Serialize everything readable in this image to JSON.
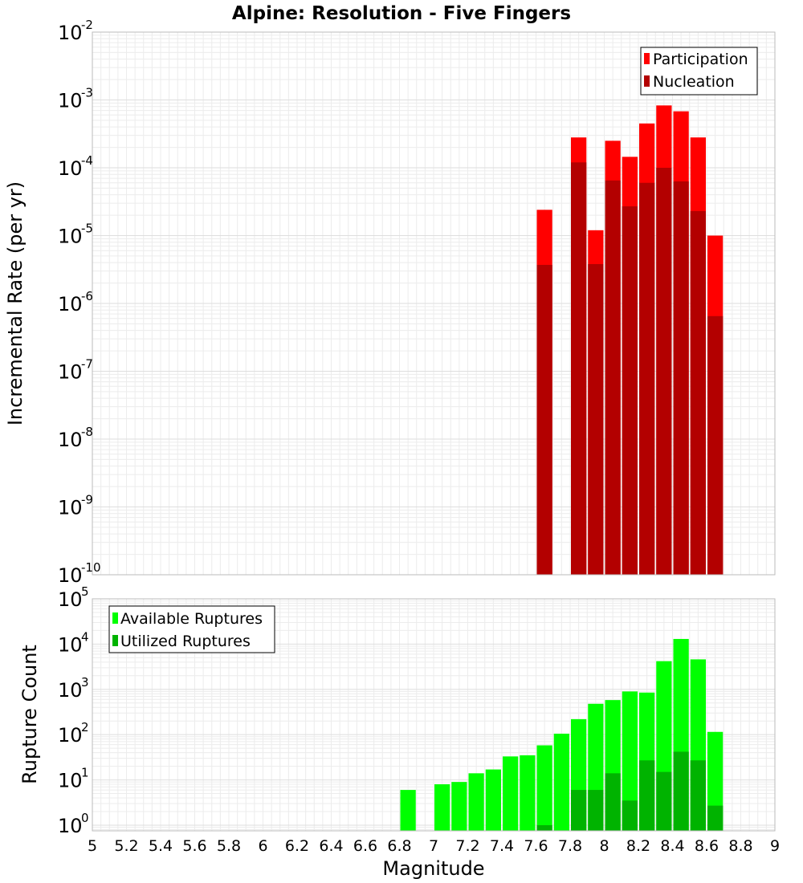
{
  "chart_data": [
    {
      "type": "bar",
      "title": "Alpine: Resolution - Five Fingers",
      "xlabel": "",
      "ylabel": "Incremental Rate (per yr)",
      "xlim": [
        5,
        9
      ],
      "ylim": [
        1e-10,
        0.01
      ],
      "yscale": "log",
      "bar_width": 0.1,
      "grid": true,
      "legend_position": "top-right",
      "series": [
        {
          "name": "Participation",
          "color": "#ff0000",
          "x": [
            7.65,
            7.85,
            7.95,
            8.05,
            8.15,
            8.25,
            8.35,
            8.45,
            8.55,
            8.65
          ],
          "values": [
            2.4e-05,
            0.00028,
            1.2e-05,
            0.00025,
            0.000145,
            0.00045,
            0.00083,
            0.00068,
            0.00028,
            1e-05
          ]
        },
        {
          "name": "Nucleation",
          "color": "#b30000",
          "x": [
            7.65,
            7.85,
            7.95,
            8.05,
            8.15,
            8.25,
            8.35,
            8.45,
            8.55,
            8.65
          ],
          "values": [
            3.7e-06,
            0.00012,
            3.8e-06,
            6.5e-05,
            2.7e-05,
            6e-05,
            0.0001,
            6.3e-05,
            2.3e-05,
            6.5e-07
          ]
        }
      ]
    },
    {
      "type": "bar",
      "title": "",
      "xlabel": "Magnitude",
      "ylabel": "Rupture Count",
      "xlim": [
        5,
        9
      ],
      "ylim": [
        0.75,
        100000
      ],
      "yscale": "log",
      "bar_width": 0.1,
      "grid": true,
      "legend_position": "top-left",
      "xticks": [
        "5",
        "5.2",
        "5.4",
        "5.6",
        "5.8",
        "6",
        "6.2",
        "6.4",
        "6.6",
        "6.8",
        "7",
        "7.2",
        "7.4",
        "7.6",
        "7.8",
        "8",
        "8.2",
        "8.4",
        "8.6",
        "8.8",
        "9"
      ],
      "series": [
        {
          "name": "Available Ruptures",
          "color": "#00ff00",
          "x": [
            6.85,
            7.05,
            7.15,
            7.25,
            7.35,
            7.45,
            7.55,
            7.65,
            7.75,
            7.85,
            7.95,
            8.05,
            8.15,
            8.25,
            8.35,
            8.45,
            8.55,
            8.65
          ],
          "values": [
            6,
            8,
            9,
            14,
            17,
            33,
            35,
            58,
            105,
            220,
            480,
            580,
            900,
            850,
            4200,
            13000,
            4600,
            115
          ]
        },
        {
          "name": "Utilized Ruptures",
          "color": "#00b300",
          "x": [
            7.65,
            7.85,
            7.95,
            8.05,
            8.15,
            8.25,
            8.35,
            8.45,
            8.55,
            8.65
          ],
          "values": [
            1,
            6,
            6,
            14,
            3.5,
            27,
            15,
            42,
            27,
            2.7
          ]
        }
      ]
    }
  ]
}
